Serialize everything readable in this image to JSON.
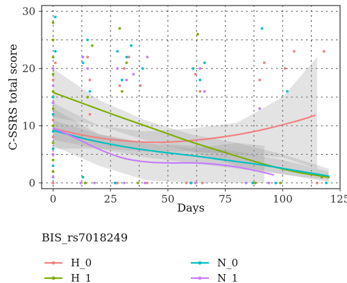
{
  "chart_data": {
    "type": "scatter",
    "xlabel": "Days",
    "ylabel": "C-SSRS total score",
    "xlim": [
      -5,
      125
    ],
    "ylim": [
      -1,
      31
    ],
    "x_ticks": [
      "0",
      "25",
      "50",
      "75",
      "100",
      "125"
    ],
    "y_ticks": [
      "0",
      "10",
      "20",
      "30"
    ],
    "grid": "dotted",
    "legend": {
      "title": "BIS_rs7018249",
      "position": "bottom",
      "entries": [
        "H_0",
        "H_1",
        "N_0",
        "N_1"
      ]
    },
    "colors": {
      "H_0": "#F08080",
      "H_1": "#7CAE00",
      "N_0": "#00BFC4",
      "N_1": "#C77CFF"
    },
    "series": [
      {
        "name": "H_0",
        "color": "#F08080",
        "points": [
          [
            0,
            0
          ],
          [
            0,
            2
          ],
          [
            0,
            5
          ],
          [
            0,
            8
          ],
          [
            0,
            11
          ],
          [
            0,
            14
          ],
          [
            0,
            18
          ],
          [
            1,
            21
          ],
          [
            14,
            0
          ],
          [
            15,
            22
          ],
          [
            16,
            12
          ],
          [
            16,
            18
          ],
          [
            28,
            0
          ],
          [
            29,
            17
          ],
          [
            31,
            20
          ],
          [
            33,
            22
          ],
          [
            38,
            17
          ],
          [
            41,
            0
          ],
          [
            58,
            0
          ],
          [
            62,
            19
          ],
          [
            64,
            16
          ],
          [
            65,
            0
          ],
          [
            88,
            0
          ],
          [
            90,
            18
          ],
          [
            92,
            21
          ],
          [
            101,
            20
          ],
          [
            105,
            23
          ],
          [
            115,
            0
          ],
          [
            118,
            23
          ],
          [
            120,
            1
          ]
        ],
        "fit": [
          [
            0,
            9.5
          ],
          [
            15,
            8.2
          ],
          [
            30,
            7.4
          ],
          [
            45,
            7.1
          ],
          [
            60,
            7.4
          ],
          [
            75,
            8.1
          ],
          [
            90,
            9.2
          ],
          [
            105,
            10.7
          ],
          [
            114,
            11.8
          ]
        ],
        "band_upper": [
          [
            0,
            14
          ],
          [
            20,
            10
          ],
          [
            40,
            9
          ],
          [
            60,
            9.5
          ],
          [
            80,
            10.5
          ],
          [
            100,
            15
          ],
          [
            115,
            22
          ]
        ],
        "band_lower": [
          [
            0,
            6
          ],
          [
            20,
            6
          ],
          [
            40,
            5.5
          ],
          [
            60,
            5.5
          ],
          [
            80,
            5
          ],
          [
            100,
            4.5
          ],
          [
            115,
            2.5
          ]
        ]
      },
      {
        "name": "H_1",
        "color": "#7CAE00",
        "points": [
          [
            0,
            2
          ],
          [
            0,
            4
          ],
          [
            0,
            7
          ],
          [
            0,
            10
          ],
          [
            0,
            13
          ],
          [
            0,
            16
          ],
          [
            0,
            19
          ],
          [
            0,
            22
          ],
          [
            0,
            25
          ],
          [
            0,
            28
          ],
          [
            14,
            0
          ],
          [
            15,
            15
          ],
          [
            17,
            24
          ],
          [
            27,
            0
          ],
          [
            29,
            27
          ],
          [
            30,
            16
          ],
          [
            32,
            21
          ],
          [
            37,
            0
          ],
          [
            60,
            0
          ],
          [
            63,
            26
          ],
          [
            88,
            0
          ],
          [
            90,
            13
          ],
          [
            99,
            0
          ],
          [
            117,
            1
          ]
        ],
        "fit": [
          [
            0,
            15.8
          ],
          [
            15,
            13.6
          ],
          [
            30,
            11.4
          ],
          [
            45,
            9.3
          ],
          [
            60,
            7.2
          ],
          [
            75,
            5.3
          ],
          [
            90,
            3.5
          ],
          [
            105,
            2.0
          ],
          [
            120,
            1.0
          ]
        ],
        "band_upper": [
          [
            0,
            20
          ],
          [
            20,
            14.5
          ],
          [
            40,
            11
          ],
          [
            60,
            8.5
          ],
          [
            80,
            7
          ],
          [
            100,
            5
          ],
          [
            120,
            2.5
          ]
        ],
        "band_lower": [
          [
            0,
            11.5
          ],
          [
            20,
            10
          ],
          [
            40,
            7.5
          ],
          [
            60,
            5.5
          ],
          [
            80,
            3
          ],
          [
            100,
            1.5
          ],
          [
            120,
            0.2
          ]
        ]
      },
      {
        "name": "N_0",
        "color": "#00BFC4",
        "points": [
          [
            0,
            3
          ],
          [
            0,
            6
          ],
          [
            0,
            9
          ],
          [
            0,
            12
          ],
          [
            0,
            15
          ],
          [
            1,
            23
          ],
          [
            1,
            29
          ],
          [
            13,
            1
          ],
          [
            13,
            21
          ],
          [
            15,
            25
          ],
          [
            16,
            16
          ],
          [
            27,
            0
          ],
          [
            28,
            23
          ],
          [
            30,
            18
          ],
          [
            32,
            22
          ],
          [
            34,
            24
          ],
          [
            39,
            20
          ],
          [
            60,
            0
          ],
          [
            61,
            20
          ],
          [
            64,
            18
          ],
          [
            66,
            21
          ],
          [
            87,
            0
          ],
          [
            91,
            27
          ],
          [
            97,
            0
          ],
          [
            102,
            16
          ],
          [
            119,
            0
          ]
        ],
        "fit": [
          [
            0,
            9.2
          ],
          [
            15,
            7.6
          ],
          [
            30,
            6.4
          ],
          [
            45,
            5.5
          ],
          [
            60,
            4.8
          ],
          [
            75,
            4.0
          ],
          [
            90,
            3.2
          ],
          [
            105,
            2.2
          ],
          [
            120,
            1.2
          ]
        ],
        "band_upper": [
          [
            0,
            11
          ],
          [
            20,
            8.5
          ],
          [
            40,
            7
          ],
          [
            60,
            6.5
          ],
          [
            80,
            5.5
          ],
          [
            100,
            4
          ],
          [
            120,
            2
          ]
        ],
        "band_lower": [
          [
            0,
            7.5
          ],
          [
            20,
            6
          ],
          [
            40,
            4.5
          ],
          [
            60,
            3.5
          ],
          [
            80,
            2.5
          ],
          [
            100,
            1.5
          ],
          [
            120,
            0.5
          ]
        ]
      },
      {
        "name": "N_1",
        "color": "#C77CFF",
        "points": [
          [
            0,
            1
          ],
          [
            0,
            5
          ],
          [
            0,
            14
          ],
          [
            0,
            17
          ],
          [
            0,
            20
          ],
          [
            12,
            0
          ],
          [
            13,
            22
          ],
          [
            15,
            20
          ],
          [
            18,
            0
          ],
          [
            28,
            20
          ],
          [
            31,
            0
          ],
          [
            32,
            18
          ],
          [
            35,
            19
          ],
          [
            40,
            0
          ],
          [
            41,
            22
          ],
          [
            62,
            0
          ],
          [
            64,
            20
          ],
          [
            66,
            16
          ],
          [
            84,
            0
          ],
          [
            90,
            13
          ],
          [
            94,
            0
          ]
        ],
        "fit": [
          [
            0,
            9.6
          ],
          [
            10,
            7.8
          ],
          [
            20,
            5.9
          ],
          [
            30,
            4.4
          ],
          [
            40,
            3.7
          ],
          [
            50,
            3.5
          ],
          [
            60,
            3.5
          ],
          [
            70,
            3.3
          ],
          [
            80,
            2.8
          ],
          [
            90,
            2.0
          ],
          [
            96,
            1.4
          ]
        ],
        "band_upper": [
          [
            0,
            13
          ],
          [
            20,
            8.5
          ],
          [
            40,
            7
          ],
          [
            60,
            6
          ],
          [
            80,
            7
          ],
          [
            92,
            6.5
          ]
        ],
        "band_lower": [
          [
            0,
            6.5
          ],
          [
            20,
            3
          ],
          [
            40,
            0.5
          ],
          [
            60,
            0
          ],
          [
            80,
            0
          ],
          [
            92,
            0
          ]
        ]
      }
    ]
  }
}
